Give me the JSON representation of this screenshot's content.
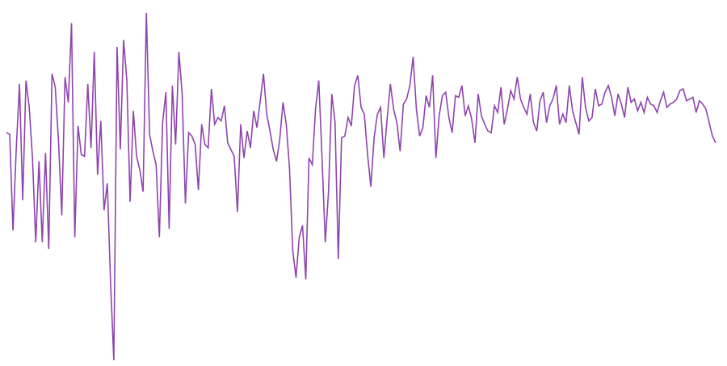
{
  "chart_data": {
    "type": "line",
    "title": "",
    "xlabel": "",
    "ylabel": "",
    "grid": false,
    "axes_visible": false,
    "legend": "none",
    "ylim": [
      -1.1,
      1.0
    ],
    "series": [
      {
        "color": "#8e44ad",
        "values": [
          0.27,
          0.26,
          -0.31,
          0.17,
          0.56,
          -0.13,
          0.58,
          0.42,
          0.12,
          -0.38,
          0.1,
          -0.38,
          0.15,
          -0.42,
          0.62,
          0.54,
          0.22,
          -0.22,
          0.6,
          0.45,
          0.92,
          -0.35,
          0.31,
          0.14,
          0.13,
          0.56,
          0.18,
          0.75,
          0.02,
          0.34,
          -0.19,
          -0.03,
          -0.62,
          -1.08,
          0.78,
          0.17,
          0.82,
          0.58,
          -0.14,
          0.4,
          0.13,
          0.05,
          -0.08,
          0.98,
          0.26,
          0.16,
          0.08,
          -0.35,
          0.33,
          0.51,
          -0.3,
          0.55,
          0.2,
          0.75,
          0.5,
          -0.15,
          0.27,
          0.25,
          0.2,
          -0.07,
          0.32,
          0.2,
          0.18,
          0.53,
          0.32,
          0.36,
          0.34,
          0.43,
          0.21,
          0.17,
          0.13,
          -0.2,
          0.32,
          0.12,
          0.28,
          0.18,
          0.4,
          0.3,
          0.46,
          0.62,
          0.38,
          0.28,
          0.17,
          0.1,
          0.23,
          0.45,
          0.32,
          0.06,
          -0.43,
          -0.59,
          -0.35,
          -0.28,
          -0.6,
          0.12,
          0.08,
          0.41,
          0.58,
          0.12,
          -0.38,
          -0.08,
          0.5,
          0.33,
          -0.48,
          0.24,
          0.25,
          0.36,
          0.31,
          0.55,
          0.61,
          0.42,
          0.38,
          0.14,
          -0.05,
          0.24,
          0.38,
          0.42,
          0.12,
          0.35,
          0.56,
          0.41,
          0.33,
          0.16,
          0.44,
          0.47,
          0.55,
          0.72,
          0.41,
          0.25,
          0.3,
          0.49,
          0.42,
          0.61,
          0.12,
          0.37,
          0.49,
          0.51,
          0.36,
          0.27,
          0.49,
          0.48,
          0.55,
          0.37,
          0.43,
          0.35,
          0.21,
          0.5,
          0.37,
          0.32,
          0.28,
          0.27,
          0.43,
          0.39,
          0.54,
          0.32,
          0.41,
          0.52,
          0.47,
          0.6,
          0.47,
          0.42,
          0.38,
          0.5,
          0.33,
          0.28,
          0.46,
          0.51,
          0.33,
          0.43,
          0.47,
          0.55,
          0.32,
          0.38,
          0.33,
          0.55,
          0.4,
          0.33,
          0.26,
          0.6,
          0.42,
          0.34,
          0.36,
          0.53,
          0.43,
          0.44,
          0.51,
          0.55,
          0.48,
          0.37,
          0.5,
          0.44,
          0.36,
          0.54,
          0.45,
          0.47,
          0.4,
          0.45,
          0.39,
          0.48,
          0.44,
          0.43,
          0.39,
          0.46,
          0.51,
          0.42,
          0.44,
          0.45,
          0.47,
          0.52,
          0.53,
          0.46,
          0.47,
          0.48,
          0.39,
          0.46,
          0.44,
          0.41,
          0.33,
          0.25,
          0.21
        ]
      }
    ]
  }
}
